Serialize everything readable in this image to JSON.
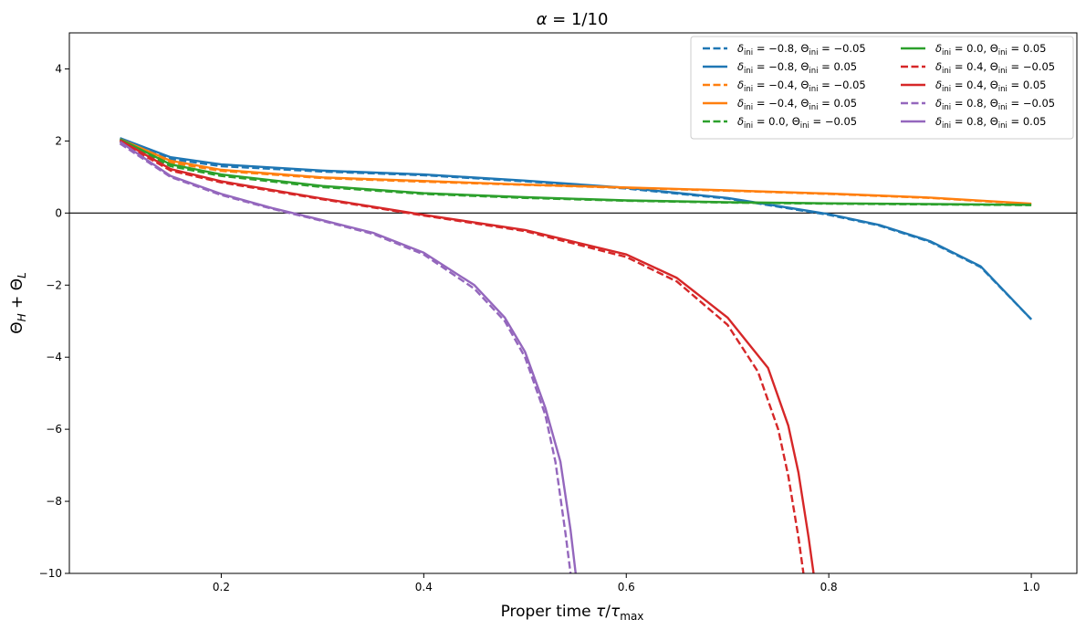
{
  "chart_data": {
    "type": "line",
    "title": "α = 1/10",
    "xlabel": "Proper time τ/τmax",
    "ylabel": "ΘH + ΘL",
    "xlim": [
      0.05,
      1.045
    ],
    "ylim": [
      -10,
      5
    ],
    "xticks": [
      0.2,
      0.4,
      0.6,
      0.8,
      1.0
    ],
    "xtick_labels": [
      "0.2",
      "0.4",
      "0.6",
      "0.8",
      "1.0"
    ],
    "yticks": [
      -10,
      -8,
      -6,
      -4,
      -2,
      0,
      2,
      4
    ],
    "ytick_labels": [
      "−10",
      "−8",
      "−6",
      "−4",
      "−2",
      "0",
      "2",
      "4"
    ],
    "hline": 0,
    "grid": false,
    "legend_position": "top-right",
    "legend_columns": 2,
    "series": [
      {
        "name": "δini = −0.8, Θini = −0.05",
        "delta": "−0.8",
        "theta": "−0.05",
        "color": "#1f77b4",
        "style": "dashed",
        "x": [
          0.1,
          0.15,
          0.2,
          0.3,
          0.4,
          0.5,
          0.6,
          0.7,
          0.8,
          0.85,
          0.9,
          0.95,
          1.0
        ],
        "y": [
          2.05,
          1.5,
          1.3,
          1.15,
          1.05,
          0.88,
          0.68,
          0.4,
          -0.05,
          -0.35,
          -0.8,
          -1.5,
          -2.95
        ]
      },
      {
        "name": "δini = −0.8, Θini = 0.05",
        "delta": "−0.8",
        "theta": "0.05",
        "color": "#1f77b4",
        "style": "solid",
        "x": [
          0.1,
          0.15,
          0.2,
          0.3,
          0.4,
          0.5,
          0.6,
          0.7,
          0.8,
          0.85,
          0.9,
          0.95,
          1.0
        ],
        "y": [
          2.08,
          1.55,
          1.35,
          1.18,
          1.07,
          0.9,
          0.7,
          0.42,
          -0.03,
          -0.33,
          -0.78,
          -1.48,
          -2.95
        ]
      },
      {
        "name": "δini = −0.4, Θini = −0.05",
        "delta": "−0.4",
        "theta": "−0.05",
        "color": "#ff7f0e",
        "style": "dashed",
        "x": [
          0.1,
          0.15,
          0.2,
          0.3,
          0.4,
          0.5,
          0.6,
          0.7,
          0.8,
          0.9,
          1.0
        ],
        "y": [
          2.02,
          1.4,
          1.17,
          0.97,
          0.87,
          0.78,
          0.7,
          0.62,
          0.53,
          0.42,
          0.25
        ]
      },
      {
        "name": "δini = −0.4, Θini = 0.05",
        "delta": "−0.4",
        "theta": "0.05",
        "color": "#ff7f0e",
        "style": "solid",
        "x": [
          0.1,
          0.15,
          0.2,
          0.3,
          0.4,
          0.5,
          0.6,
          0.7,
          0.8,
          0.9,
          1.0
        ],
        "y": [
          2.05,
          1.45,
          1.2,
          0.99,
          0.89,
          0.79,
          0.71,
          0.63,
          0.54,
          0.43,
          0.26
        ]
      },
      {
        "name": "δini = 0.0, Θini = −0.05",
        "delta": "0.0",
        "theta": "−0.05",
        "color": "#2ca02c",
        "style": "dashed",
        "x": [
          0.1,
          0.15,
          0.2,
          0.3,
          0.4,
          0.5,
          0.6,
          0.7,
          0.8,
          0.9,
          1.0
        ],
        "y": [
          2.0,
          1.3,
          1.03,
          0.72,
          0.53,
          0.42,
          0.34,
          0.29,
          0.26,
          0.24,
          0.22
        ]
      },
      {
        "name": "δini = 0.0, Θini = 0.05",
        "delta": "0.0",
        "theta": "0.05",
        "color": "#2ca02c",
        "style": "solid",
        "x": [
          0.1,
          0.15,
          0.2,
          0.3,
          0.4,
          0.5,
          0.6,
          0.7,
          0.8,
          0.9,
          1.0
        ],
        "y": [
          2.05,
          1.35,
          1.07,
          0.75,
          0.55,
          0.44,
          0.35,
          0.3,
          0.27,
          0.25,
          0.23
        ]
      },
      {
        "name": "δini = 0.4, Θini = −0.05",
        "delta": "0.4",
        "theta": "−0.05",
        "color": "#d62728",
        "style": "dashed",
        "x": [
          0.1,
          0.15,
          0.2,
          0.3,
          0.4,
          0.5,
          0.6,
          0.65,
          0.7,
          0.73,
          0.75,
          0.76,
          0.77,
          0.775
        ],
        "y": [
          1.98,
          1.18,
          0.85,
          0.38,
          -0.07,
          -0.5,
          -1.22,
          -1.9,
          -3.1,
          -4.4,
          -6.0,
          -7.3,
          -9.0,
          -10.0
        ]
      },
      {
        "name": "δini = 0.4, Θini = 0.05",
        "delta": "0.4",
        "theta": "0.05",
        "color": "#d62728",
        "style": "solid",
        "x": [
          0.1,
          0.15,
          0.2,
          0.3,
          0.4,
          0.5,
          0.6,
          0.65,
          0.7,
          0.74,
          0.76,
          0.77,
          0.78,
          0.785
        ],
        "y": [
          2.02,
          1.22,
          0.88,
          0.4,
          -0.05,
          -0.47,
          -1.15,
          -1.8,
          -2.9,
          -4.3,
          -5.9,
          -7.2,
          -9.0,
          -10.0
        ]
      },
      {
        "name": "δini = 0.8, Θini = −0.05",
        "delta": "0.8",
        "theta": "−0.05",
        "color": "#9467bd",
        "style": "dashed",
        "x": [
          0.1,
          0.15,
          0.2,
          0.25,
          0.3,
          0.35,
          0.4,
          0.45,
          0.48,
          0.5,
          0.52,
          0.53,
          0.54,
          0.545
        ],
        "y": [
          1.93,
          1.0,
          0.5,
          0.12,
          -0.22,
          -0.58,
          -1.15,
          -2.1,
          -3.0,
          -4.0,
          -5.6,
          -6.9,
          -8.9,
          -10.0
        ]
      },
      {
        "name": "δini = 0.8, Θini = 0.05",
        "delta": "0.8",
        "theta": "0.05",
        "color": "#9467bd",
        "style": "solid",
        "x": [
          0.1,
          0.15,
          0.2,
          0.25,
          0.3,
          0.35,
          0.4,
          0.45,
          0.48,
          0.5,
          0.52,
          0.535,
          0.545,
          0.55
        ],
        "y": [
          1.98,
          1.03,
          0.53,
          0.14,
          -0.2,
          -0.55,
          -1.1,
          -2.0,
          -2.9,
          -3.85,
          -5.4,
          -6.9,
          -8.8,
          -10.0
        ]
      }
    ]
  }
}
